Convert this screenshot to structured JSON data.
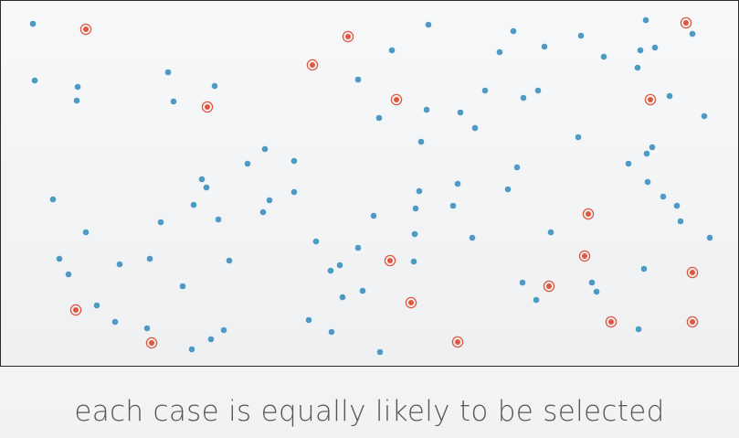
{
  "caption": "each case is equally likely to be selected",
  "colors": {
    "population_dot": "#4f9ac4",
    "selected_dot": "#e0573f",
    "frame": "#2b2b2b",
    "caption_text": "#555555"
  },
  "chart_data": {
    "type": "scatter",
    "xlim": [
      0,
      807
    ],
    "ylim": [
      0,
      399
    ],
    "grid": false,
    "series": [
      {
        "points": [
          [
            35,
            25
          ],
          [
            37,
            87
          ],
          [
            84,
            94
          ],
          [
            83,
            109
          ],
          [
            183,
            78
          ],
          [
            234,
            93
          ],
          [
            189,
            110
          ],
          [
            468,
            26
          ],
          [
            428,
            54
          ],
          [
            391,
            86
          ],
          [
            414,
            128
          ],
          [
            466,
            119
          ],
          [
            530,
            98
          ],
          [
            503,
            122
          ],
          [
            519,
            139
          ],
          [
            460,
            154
          ],
          [
            561,
            33
          ],
          [
            546,
            56
          ],
          [
            595,
            50
          ],
          [
            572,
            106
          ],
          [
            588,
            98
          ],
          [
            635,
            38
          ],
          [
            660,
            61
          ],
          [
            706,
            21
          ],
          [
            700,
            54
          ],
          [
            716,
            51
          ],
          [
            697,
            73
          ],
          [
            757,
            36
          ],
          [
            732,
            104
          ],
          [
            770,
            126
          ],
          [
            632,
            149
          ],
          [
            707,
            167
          ],
          [
            713,
            160
          ],
          [
            687,
            178
          ],
          [
            565,
            182
          ],
          [
            555,
            206
          ],
          [
            500,
            200
          ],
          [
            495,
            224
          ],
          [
            458,
            208
          ],
          [
            454,
            227
          ],
          [
            408,
            235
          ],
          [
            453,
            255
          ],
          [
            516,
            259
          ],
          [
            391,
            270
          ],
          [
            345,
            263
          ],
          [
            361,
            295
          ],
          [
            371,
            289
          ],
          [
            452,
            285
          ],
          [
            396,
            317
          ],
          [
            374,
            324
          ],
          [
            337,
            349
          ],
          [
            362,
            362
          ],
          [
            415,
            384
          ],
          [
            270,
            178
          ],
          [
            289,
            162
          ],
          [
            321,
            175
          ],
          [
            321,
            209
          ],
          [
            294,
            218
          ],
          [
            287,
            231
          ],
          [
            220,
            195
          ],
          [
            225,
            204
          ],
          [
            211,
            223
          ],
          [
            238,
            239
          ],
          [
            175,
            242
          ],
          [
            57,
            217
          ],
          [
            93,
            253
          ],
          [
            64,
            282
          ],
          [
            74,
            299
          ],
          [
            130,
            288
          ],
          [
            163,
            282
          ],
          [
            199,
            312
          ],
          [
            250,
            284
          ],
          [
            105,
            333
          ],
          [
            125,
            351
          ],
          [
            160,
            358
          ],
          [
            244,
            360
          ],
          [
            230,
            370
          ],
          [
            209,
            381
          ],
          [
            708,
            198
          ],
          [
            725,
            214
          ],
          [
            740,
            224
          ],
          [
            744,
            241
          ],
          [
            776,
            259
          ],
          [
            602,
            253
          ],
          [
            704,
            293
          ],
          [
            647,
            308
          ],
          [
            652,
            318
          ],
          [
            571,
            308
          ],
          [
            586,
            327
          ],
          [
            698,
            359
          ]
        ]
      },
      {
        "points": [
          [
            93,
            31
          ],
          [
            380,
            39
          ],
          [
            341,
            70
          ],
          [
            226,
            116
          ],
          [
            433,
            108
          ],
          [
            750,
            24
          ],
          [
            711,
            108
          ],
          [
            643,
            233
          ],
          [
            426,
            284
          ],
          [
            639,
            279
          ],
          [
            757,
            297
          ],
          [
            600,
            312
          ],
          [
            449,
            330
          ],
          [
            82,
            338
          ],
          [
            668,
            351
          ],
          [
            757,
            351
          ],
          [
            165,
            374
          ],
          [
            500,
            373
          ]
        ]
      }
    ]
  }
}
